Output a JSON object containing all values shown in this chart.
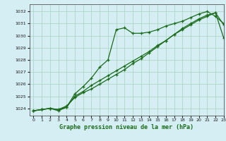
{
  "xlabel": "Graphe pression niveau de la mer (hPa)",
  "bg_color": "#d4eef4",
  "grid_color": "#b0d4c8",
  "line_color": "#1a6b1a",
  "xlim": [
    -0.5,
    23
  ],
  "ylim": [
    1023.4,
    1032.6
  ],
  "yticks": [
    1024,
    1025,
    1026,
    1027,
    1028,
    1029,
    1030,
    1031,
    1032
  ],
  "xticks": [
    0,
    1,
    2,
    3,
    4,
    5,
    6,
    7,
    8,
    9,
    10,
    11,
    12,
    13,
    14,
    15,
    16,
    17,
    18,
    19,
    20,
    21,
    22,
    23
  ],
  "line1_x": [
    0,
    1,
    2,
    3,
    4,
    5,
    6,
    7,
    8,
    9,
    10,
    11,
    12,
    13,
    14,
    15,
    16,
    17,
    18,
    19,
    20,
    21,
    22,
    23
  ],
  "line1_y": [
    1023.8,
    1023.9,
    1024.0,
    1023.8,
    1024.1,
    1025.2,
    1025.8,
    1026.5,
    1027.4,
    1028.0,
    1030.5,
    1030.65,
    1030.2,
    1030.2,
    1030.3,
    1030.5,
    1030.8,
    1031.0,
    1031.2,
    1031.5,
    1031.8,
    1032.0,
    1031.6,
    1031.0
  ],
  "line2_x": [
    0,
    1,
    2,
    3,
    4,
    5,
    6,
    7,
    8,
    9,
    10,
    11,
    12,
    13,
    14,
    15,
    16,
    17,
    18,
    19,
    20,
    21,
    22,
    23
  ],
  "line2_y": [
    1023.8,
    1023.9,
    1024.0,
    1023.9,
    1024.2,
    1024.9,
    1025.3,
    1025.6,
    1026.0,
    1026.4,
    1026.8,
    1027.2,
    1027.7,
    1028.1,
    1028.6,
    1029.1,
    1029.6,
    1030.1,
    1030.6,
    1031.0,
    1031.4,
    1031.7,
    1031.9,
    1030.9
  ],
  "line3_x": [
    0,
    1,
    2,
    3,
    4,
    5,
    6,
    7,
    8,
    9,
    10,
    11,
    12,
    13,
    14,
    15,
    16,
    17,
    18,
    19,
    20,
    21,
    22,
    23
  ],
  "line3_y": [
    1023.8,
    1023.9,
    1024.0,
    1023.9,
    1024.1,
    1025.0,
    1025.4,
    1025.9,
    1026.3,
    1026.7,
    1027.1,
    1027.5,
    1027.9,
    1028.3,
    1028.7,
    1029.2,
    1029.6,
    1030.1,
    1030.5,
    1030.9,
    1031.3,
    1031.6,
    1031.9,
    1029.8
  ]
}
